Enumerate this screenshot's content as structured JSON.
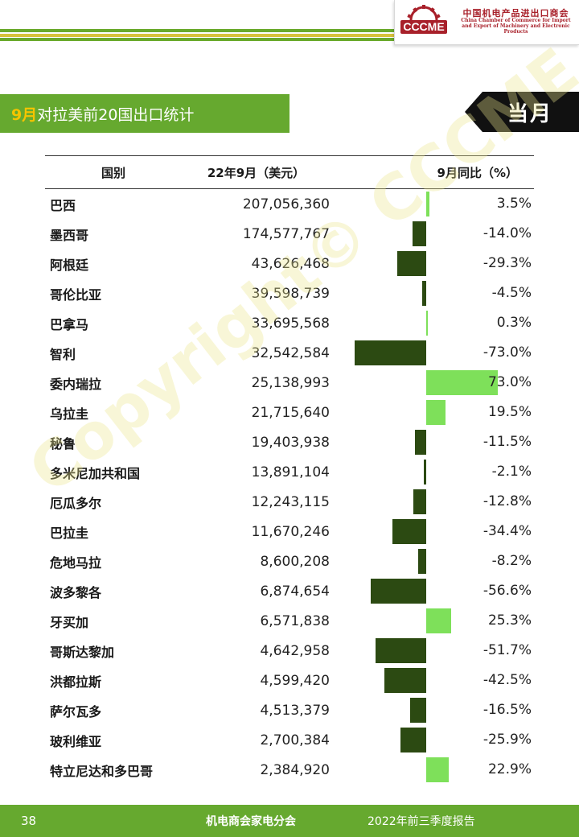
{
  "header": {
    "logo_mark_text": "CCCME",
    "logo_cn": "中国机电产品进出口商会",
    "logo_en_line1": "China Chamber of Commerce for Import",
    "logo_en_line2": "and Export of Machinery and Electronic Products",
    "brand_red": "#a8202a"
  },
  "title": {
    "accent": "9月",
    "rest": "对拉美前20国出口统计",
    "tag": "当月",
    "green": "#66a92f",
    "accent_color": "#f5c400"
  },
  "table": {
    "headers": {
      "country": "国别",
      "value": "22年9月（美元）",
      "yoy": "9月同比（%）"
    },
    "rows": [
      {
        "country": "巴西",
        "value": "207,056,360",
        "yoy": "3.5%",
        "yoy_value": 3.5
      },
      {
        "country": "墨西哥",
        "value": "174,577,767",
        "yoy": "-14.0%",
        "yoy_value": -14.0
      },
      {
        "country": "阿根廷",
        "value": "43,626,468",
        "yoy": "-29.3%",
        "yoy_value": -29.3
      },
      {
        "country": "哥伦比亚",
        "value": "39,598,739",
        "yoy": "-4.5%",
        "yoy_value": -4.5
      },
      {
        "country": "巴拿马",
        "value": "33,695,568",
        "yoy": "0.3%",
        "yoy_value": 0.3
      },
      {
        "country": "智利",
        "value": "32,542,584",
        "yoy": "-73.0%",
        "yoy_value": -73.0
      },
      {
        "country": "委内瑞拉",
        "value": "25,138,993",
        "yoy": "73.0%",
        "yoy_value": 73.0
      },
      {
        "country": "乌拉圭",
        "value": "21,715,640",
        "yoy": "19.5%",
        "yoy_value": 19.5
      },
      {
        "country": "秘鲁",
        "value": "19,403,938",
        "yoy": "-11.5%",
        "yoy_value": -11.5
      },
      {
        "country": "多米尼加共和国",
        "value": "13,891,104",
        "yoy": "-2.1%",
        "yoy_value": -2.1
      },
      {
        "country": "厄瓜多尔",
        "value": "12,243,115",
        "yoy": "-12.8%",
        "yoy_value": -12.8
      },
      {
        "country": "巴拉圭",
        "value": "11,670,246",
        "yoy": "-34.4%",
        "yoy_value": -34.4
      },
      {
        "country": "危地马拉",
        "value": "8,600,208",
        "yoy": "-8.2%",
        "yoy_value": -8.2
      },
      {
        "country": "波多黎各",
        "value": "6,874,654",
        "yoy": "-56.6%",
        "yoy_value": -56.6
      },
      {
        "country": "牙买加",
        "value": "6,571,838",
        "yoy": "25.3%",
        "yoy_value": 25.3
      },
      {
        "country": "哥斯达黎加",
        "value": "4,642,958",
        "yoy": "-51.7%",
        "yoy_value": -51.7
      },
      {
        "country": "洪都拉斯",
        "value": "4,599,420",
        "yoy": "-42.5%",
        "yoy_value": -42.5
      },
      {
        "country": "萨尔瓦多",
        "value": "4,513,379",
        "yoy": "-16.5%",
        "yoy_value": -16.5
      },
      {
        "country": "玻利维亚",
        "value": "2,700,384",
        "yoy": "-25.9%",
        "yoy_value": -25.9
      },
      {
        "country": "特立尼达和多巴哥",
        "value": "2,384,920",
        "yoy": "22.9%",
        "yoy_value": 22.9
      }
    ],
    "negative_color": "#2c4a12",
    "positive_color": "#7ee05a"
  },
  "watermark": "Copyright© CCCME",
  "footer": {
    "page": "38",
    "org": "机电商会家电分会",
    "report": "2022年前三季度报告"
  }
}
